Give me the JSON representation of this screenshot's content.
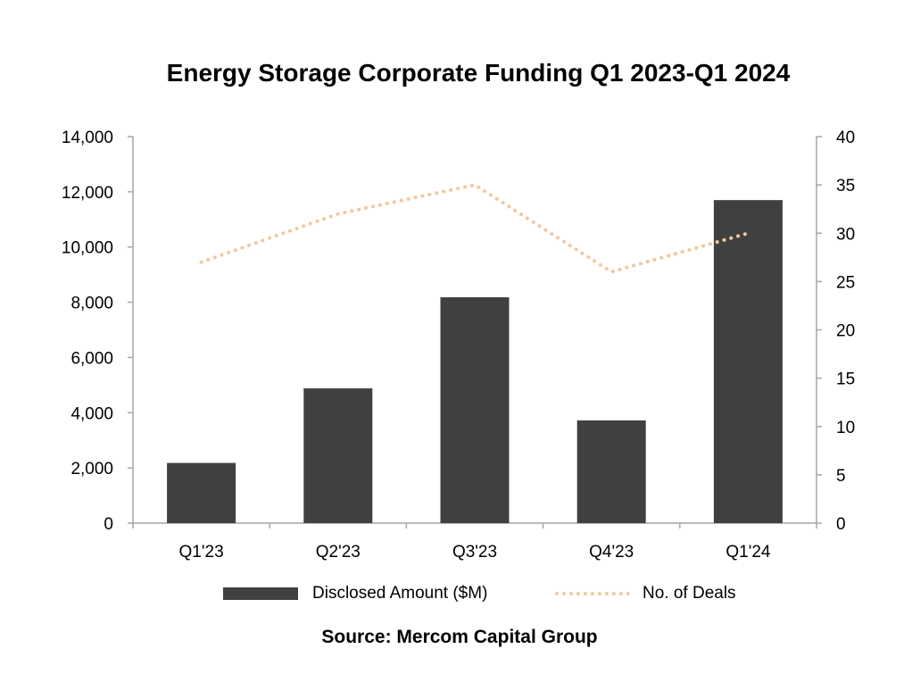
{
  "chart_data": {
    "type": "bar+line",
    "title": "Energy Storage Corporate Funding Q1 2023-Q1 2024",
    "categories": [
      "Q1'23",
      "Q2'23",
      "Q3'23",
      "Q4'23",
      "Q1'24"
    ],
    "series": [
      {
        "name": "Disclosed Amount ($M)",
        "type": "bar",
        "axis": "left",
        "values": [
          2180,
          4880,
          8180,
          3720,
          11700
        ],
        "color": "#404040"
      },
      {
        "name": "No. of Deals",
        "type": "line",
        "style": "dotted",
        "axis": "right",
        "values": [
          27,
          32,
          35,
          26,
          30
        ],
        "color": "#f3c89b"
      }
    ],
    "y_left": {
      "min": 0,
      "max": 14000,
      "step": 2000,
      "ticks": [
        "0",
        "2,000",
        "4,000",
        "6,000",
        "8,000",
        "10,000",
        "12,000",
        "14,000"
      ]
    },
    "y_right": {
      "min": 0,
      "max": 40,
      "step": 5,
      "ticks": [
        "0",
        "5",
        "10",
        "15",
        "20",
        "25",
        "30",
        "35",
        "40"
      ]
    },
    "legend_position": "bottom",
    "source": "Source: Mercom Capital Group"
  },
  "colors": {
    "axis": "#a6a6a6",
    "bar": "#404040",
    "line": "#f3c89b"
  }
}
